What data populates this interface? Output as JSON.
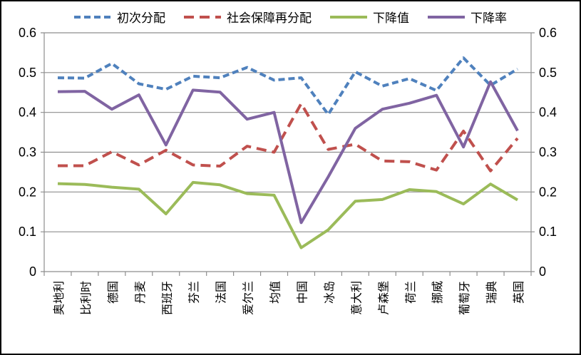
{
  "chart": {
    "background": "#ffffff",
    "border_color": "#000000",
    "gridline_color": "#8e8e8e",
    "text_color": "#000000"
  },
  "chart_data": {
    "type": "line",
    "title": "",
    "categories": [
      "奥地利",
      "比利时",
      "德国",
      "丹麦",
      "西班牙",
      "芬兰",
      "法国",
      "爱尔兰",
      "均值",
      "中国",
      "冰岛",
      "意大利",
      "卢森堡",
      "荷兰",
      "挪威",
      "葡萄牙",
      "瑞典",
      "英国"
    ],
    "series": [
      {
        "id": "primary-distribution",
        "name": "初次分配",
        "color": "#4F81BD",
        "style": "dashed",
        "dash": "9 5",
        "values": [
          0.487,
          0.486,
          0.523,
          0.472,
          0.458,
          0.491,
          0.487,
          0.513,
          0.481,
          0.487,
          0.395,
          0.502,
          0.466,
          0.485,
          0.455,
          0.537,
          0.468,
          0.509
        ]
      },
      {
        "id": "social-security-redistribution",
        "name": "社会保障再分配",
        "color": "#C0504D",
        "style": "dashed",
        "dash": "14 8",
        "values": [
          0.266,
          0.266,
          0.301,
          0.268,
          0.305,
          0.268,
          0.265,
          0.315,
          0.3,
          0.422,
          0.307,
          0.32,
          0.278,
          0.276,
          0.255,
          0.353,
          0.253,
          0.335
        ]
      },
      {
        "id": "decline-value",
        "name": "下降值",
        "color": "#9BBB59",
        "style": "solid",
        "dash": null,
        "values": [
          0.221,
          0.219,
          0.212,
          0.207,
          0.145,
          0.224,
          0.218,
          0.196,
          0.192,
          0.06,
          0.105,
          0.177,
          0.181,
          0.206,
          0.201,
          0.17,
          0.22,
          0.18
        ]
      },
      {
        "id": "decline-rate",
        "name": "下降率",
        "color": "#8064A2",
        "style": "solid",
        "dash": null,
        "values": [
          0.452,
          0.453,
          0.408,
          0.444,
          0.318,
          0.456,
          0.451,
          0.383,
          0.4,
          0.123,
          0.238,
          0.36,
          0.408,
          0.423,
          0.443,
          0.313,
          0.477,
          0.354
        ]
      }
    ],
    "ylim": [
      0,
      0.6
    ],
    "yticks": [
      0,
      0.1,
      0.2,
      0.3,
      0.4,
      0.5,
      0.6
    ],
    "grid": true,
    "legend_position": "top",
    "y_axis_sides": "both",
    "x_label_rotation": -90
  }
}
